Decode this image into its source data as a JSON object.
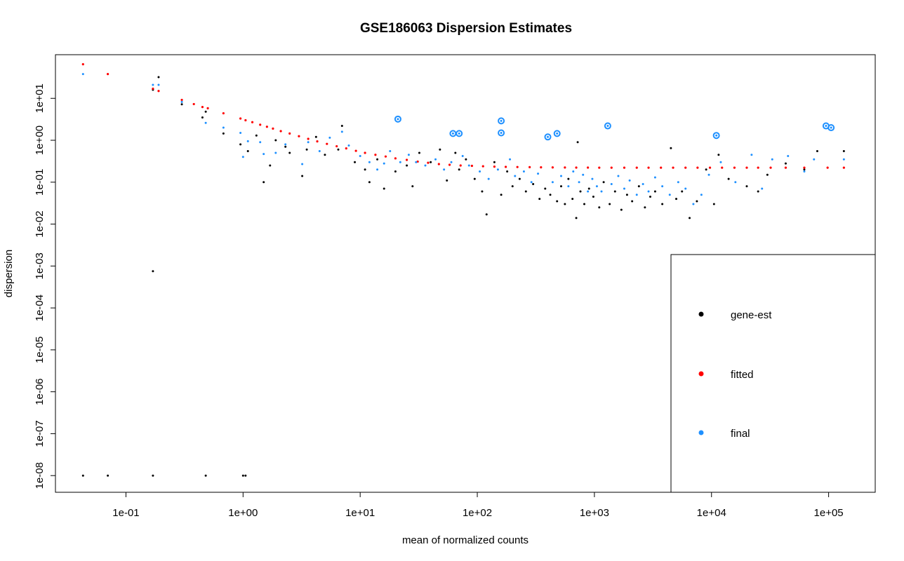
{
  "chart_data": {
    "type": "scatter",
    "title": "GSE186063 Dispersion Estimates",
    "xlabel": "mean of normalized counts",
    "ylabel": "dispersion",
    "x_scale": "log10",
    "y_scale": "log10",
    "xlim": [
      0.025,
      250000
    ],
    "ylim": [
      4e-09,
      110
    ],
    "x_ticks": [
      {
        "value": 0.1,
        "label": "1e-01"
      },
      {
        "value": 1,
        "label": "1e+00"
      },
      {
        "value": 10,
        "label": "1e+01"
      },
      {
        "value": 100,
        "label": "1e+02"
      },
      {
        "value": 1000,
        "label": "1e+03"
      },
      {
        "value": 10000,
        "label": "1e+04"
      },
      {
        "value": 100000,
        "label": "1e+05"
      }
    ],
    "y_ticks": [
      {
        "value": 1e-08,
        "label": "1e-08"
      },
      {
        "value": 1e-07,
        "label": "1e-07"
      },
      {
        "value": 1e-06,
        "label": "1e-06"
      },
      {
        "value": 1e-05,
        "label": "1e-05"
      },
      {
        "value": 0.0001,
        "label": "1e-04"
      },
      {
        "value": 0.001,
        "label": "1e-03"
      },
      {
        "value": 0.01,
        "label": "1e-02"
      },
      {
        "value": 0.1,
        "label": "1e-01"
      },
      {
        "value": 1,
        "label": "1e+00"
      },
      {
        "value": 10,
        "label": "1e+01"
      }
    ],
    "grid": false,
    "legend_position": "bottom-right",
    "series": [
      {
        "name": "gene-est",
        "color": "#000000",
        "points": [
          [
            0.043,
            1e-08
          ],
          [
            0.07,
            1e-08
          ],
          [
            0.17,
            1e-08
          ],
          [
            0.48,
            1e-08
          ],
          [
            1.0,
            1e-08
          ],
          [
            1.05,
            1e-08
          ],
          [
            0.17,
            0.00075
          ],
          [
            0.19,
            32
          ],
          [
            0.17,
            16
          ],
          [
            0.3,
            7.2
          ],
          [
            0.45,
            3.5
          ],
          [
            0.48,
            4.8
          ],
          [
            0.68,
            1.45
          ],
          [
            0.95,
            0.8
          ],
          [
            1.1,
            0.55
          ],
          [
            1.3,
            1.3
          ],
          [
            1.5,
            0.1
          ],
          [
            1.7,
            0.25
          ],
          [
            1.9,
            1.0
          ],
          [
            2.3,
            0.7
          ],
          [
            2.5,
            0.5
          ],
          [
            3.2,
            0.14
          ],
          [
            3.5,
            0.6
          ],
          [
            4.2,
            1.2
          ],
          [
            5.0,
            0.45
          ],
          [
            6.5,
            0.6
          ],
          [
            7.0,
            2.2
          ],
          [
            9.0,
            0.3
          ],
          [
            11,
            0.2
          ],
          [
            12,
            0.1
          ],
          [
            14,
            0.35
          ],
          [
            16,
            0.07
          ],
          [
            20,
            0.18
          ],
          [
            25,
            0.25
          ],
          [
            28,
            0.08
          ],
          [
            32,
            0.5
          ],
          [
            40,
            0.3
          ],
          [
            48,
            0.6
          ],
          [
            55,
            0.11
          ],
          [
            65,
            0.5
          ],
          [
            70,
            0.2
          ],
          [
            80,
            0.35
          ],
          [
            95,
            0.12
          ],
          [
            110,
            0.06
          ],
          [
            120,
            0.017
          ],
          [
            140,
            0.3
          ],
          [
            160,
            0.05
          ],
          [
            180,
            0.18
          ],
          [
            200,
            0.08
          ],
          [
            230,
            0.12
          ],
          [
            260,
            0.06
          ],
          [
            300,
            0.09
          ],
          [
            340,
            0.04
          ],
          [
            380,
            0.07
          ],
          [
            420,
            0.05
          ],
          [
            480,
            0.035
          ],
          [
            520,
            0.08
          ],
          [
            560,
            0.03
          ],
          [
            600,
            0.12
          ],
          [
            650,
            0.04
          ],
          [
            700,
            0.014
          ],
          [
            720,
            0.9
          ],
          [
            760,
            0.06
          ],
          [
            820,
            0.03
          ],
          [
            900,
            0.07
          ],
          [
            980,
            0.045
          ],
          [
            1100,
            0.025
          ],
          [
            1200,
            0.1
          ],
          [
            1350,
            0.03
          ],
          [
            1500,
            0.06
          ],
          [
            1700,
            0.022
          ],
          [
            1900,
            0.05
          ],
          [
            2100,
            0.035
          ],
          [
            2400,
            0.08
          ],
          [
            2700,
            0.025
          ],
          [
            3000,
            0.045
          ],
          [
            3300,
            0.06
          ],
          [
            3800,
            0.03
          ],
          [
            4500,
            0.65
          ],
          [
            5000,
            0.04
          ],
          [
            5600,
            0.06
          ],
          [
            6500,
            0.014
          ],
          [
            7500,
            0.035
          ],
          [
            9000,
            0.2
          ],
          [
            10500,
            0.03
          ],
          [
            11500,
            0.45
          ],
          [
            14000,
            0.12
          ],
          [
            20000,
            0.08
          ],
          [
            25000,
            0.06
          ],
          [
            30000,
            0.15
          ],
          [
            43000,
            0.28
          ],
          [
            62000,
            0.2
          ],
          [
            80000,
            0.55
          ],
          [
            135000,
            0.55
          ]
        ]
      },
      {
        "name": "fitted",
        "color": "#ff0000",
        "points": [
          [
            0.043,
            65
          ],
          [
            0.07,
            38
          ],
          [
            0.17,
            17
          ],
          [
            0.19,
            15
          ],
          [
            0.3,
            9.2
          ],
          [
            0.38,
            7.3
          ],
          [
            0.45,
            6.2
          ],
          [
            0.5,
            5.8
          ],
          [
            0.68,
            4.4
          ],
          [
            0.95,
            3.3
          ],
          [
            1.05,
            3.0
          ],
          [
            1.2,
            2.7
          ],
          [
            1.4,
            2.35
          ],
          [
            1.6,
            2.1
          ],
          [
            1.8,
            1.9
          ],
          [
            2.1,
            1.65
          ],
          [
            2.5,
            1.45
          ],
          [
            3.0,
            1.25
          ],
          [
            3.6,
            1.08
          ],
          [
            4.3,
            0.94
          ],
          [
            5.2,
            0.82
          ],
          [
            6.3,
            0.72
          ],
          [
            7.6,
            0.64
          ],
          [
            9.2,
            0.56
          ],
          [
            11,
            0.5
          ],
          [
            13.5,
            0.45
          ],
          [
            16.5,
            0.41
          ],
          [
            20,
            0.37
          ],
          [
            25,
            0.34
          ],
          [
            31,
            0.31
          ],
          [
            38,
            0.29
          ],
          [
            47,
            0.27
          ],
          [
            58,
            0.26
          ],
          [
            72,
            0.25
          ],
          [
            90,
            0.245
          ],
          [
            112,
            0.24
          ],
          [
            140,
            0.235
          ],
          [
            175,
            0.232
          ],
          [
            220,
            0.23
          ],
          [
            280,
            0.228
          ],
          [
            350,
            0.226
          ],
          [
            440,
            0.225
          ],
          [
            560,
            0.224
          ],
          [
            700,
            0.223
          ],
          [
            880,
            0.223
          ],
          [
            1100,
            0.222
          ],
          [
            1400,
            0.222
          ],
          [
            1800,
            0.222
          ],
          [
            2300,
            0.222
          ],
          [
            2900,
            0.222
          ],
          [
            3700,
            0.222
          ],
          [
            4700,
            0.222
          ],
          [
            6000,
            0.222
          ],
          [
            7600,
            0.222
          ],
          [
            9700,
            0.222
          ],
          [
            12300,
            0.222
          ],
          [
            15700,
            0.222
          ],
          [
            20000,
            0.222
          ],
          [
            25000,
            0.222
          ],
          [
            32000,
            0.222
          ],
          [
            43000,
            0.222
          ],
          [
            62000,
            0.222
          ],
          [
            98000,
            0.222
          ],
          [
            135000,
            0.222
          ]
        ]
      },
      {
        "name": "final",
        "color": "#1e90ff",
        "points": [
          [
            0.043,
            38
          ],
          [
            0.17,
            21
          ],
          [
            0.19,
            21
          ],
          [
            0.3,
            8.2
          ],
          [
            0.48,
            2.6
          ],
          [
            0.68,
            2.0
          ],
          [
            0.95,
            1.5
          ],
          [
            1.0,
            0.4
          ],
          [
            1.1,
            0.95
          ],
          [
            1.4,
            0.9
          ],
          [
            1.5,
            0.47
          ],
          [
            1.9,
            0.5
          ],
          [
            2.3,
            0.8
          ],
          [
            3.2,
            0.27
          ],
          [
            3.6,
            0.9
          ],
          [
            4.5,
            0.55
          ],
          [
            5.5,
            1.15
          ],
          [
            7.0,
            1.6
          ],
          [
            8.0,
            0.75
          ],
          [
            10,
            0.42
          ],
          [
            12,
            0.3
          ],
          [
            14,
            0.2
          ],
          [
            16,
            0.28
          ],
          [
            18,
            0.55
          ],
          [
            21,
            3.2
          ],
          [
            22,
            0.3
          ],
          [
            26,
            0.45
          ],
          [
            30,
            0.3
          ],
          [
            36,
            0.25
          ],
          [
            44,
            0.35
          ],
          [
            52,
            0.2
          ],
          [
            60,
            0.3
          ],
          [
            62,
            1.45
          ],
          [
            70,
            1.45
          ],
          [
            75,
            0.42
          ],
          [
            85,
            0.25
          ],
          [
            105,
            0.18
          ],
          [
            125,
            0.12
          ],
          [
            150,
            0.2
          ],
          [
            160,
            2.9
          ],
          [
            160,
            1.5
          ],
          [
            190,
            0.35
          ],
          [
            210,
            0.14
          ],
          [
            250,
            0.18
          ],
          [
            290,
            0.1
          ],
          [
            330,
            0.16
          ],
          [
            400,
            1.2
          ],
          [
            440,
            0.1
          ],
          [
            480,
            1.45
          ],
          [
            520,
            0.14
          ],
          [
            600,
            0.08
          ],
          [
            660,
            0.18
          ],
          [
            740,
            0.1
          ],
          [
            800,
            0.15
          ],
          [
            880,
            0.06
          ],
          [
            960,
            0.12
          ],
          [
            1050,
            0.08
          ],
          [
            1150,
            0.06
          ],
          [
            1300,
            2.2
          ],
          [
            1400,
            0.09
          ],
          [
            1600,
            0.14
          ],
          [
            1800,
            0.07
          ],
          [
            2000,
            0.11
          ],
          [
            2300,
            0.05
          ],
          [
            2600,
            0.09
          ],
          [
            2900,
            0.06
          ],
          [
            3300,
            0.13
          ],
          [
            3800,
            0.08
          ],
          [
            4400,
            0.05
          ],
          [
            5200,
            0.1
          ],
          [
            6000,
            0.07
          ],
          [
            7000,
            0.03
          ],
          [
            8200,
            0.05
          ],
          [
            9500,
            0.15
          ],
          [
            11000,
            1.3
          ],
          [
            12000,
            0.3
          ],
          [
            16000,
            0.1
          ],
          [
            22000,
            0.45
          ],
          [
            27000,
            0.07
          ],
          [
            33000,
            0.35
          ],
          [
            45000,
            0.42
          ],
          [
            62000,
            0.18
          ],
          [
            75000,
            0.35
          ],
          [
            95000,
            2.2
          ],
          [
            105000,
            2.0
          ],
          [
            135000,
            0.35
          ]
        ]
      }
    ]
  }
}
